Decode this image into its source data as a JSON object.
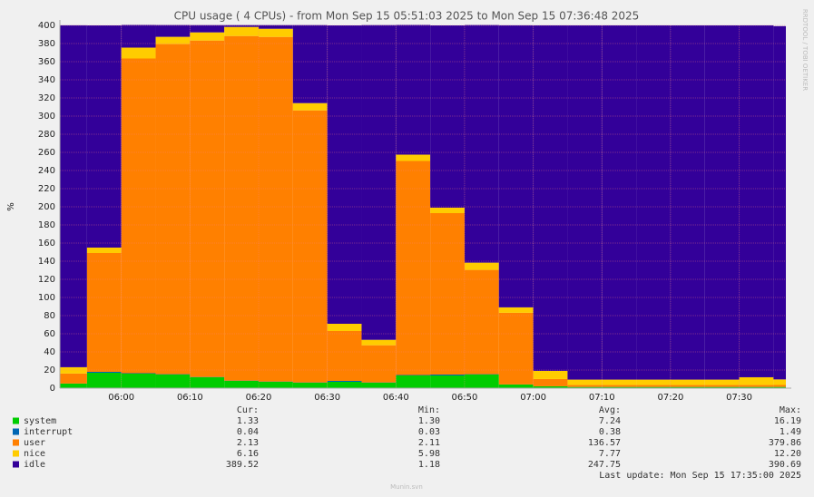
{
  "chart_data": {
    "type": "stacked-step-area",
    "title": "CPU usage ( 4  CPUs) - from Mon Sep 15 05:51:03 2025 to Mon Sep 15 07:36:48 2025",
    "y_label": "%",
    "side_label": "RRDTOOL / TOBI OETIKER",
    "x": [
      "05:55",
      "06:00",
      "06:05",
      "06:10",
      "06:15",
      "06:20",
      "06:25",
      "06:30",
      "06:35",
      "06:40",
      "06:45",
      "06:50",
      "06:55",
      "07:00",
      "07:05",
      "07:10",
      "07:15",
      "07:20",
      "07:25",
      "07:30",
      "07:35",
      "07:40"
    ],
    "xlim": [
      "05:51:03",
      "07:36:48"
    ],
    "xticks": [
      "06:00",
      "06:10",
      "06:20",
      "06:30",
      "06:40",
      "06:50",
      "07:00",
      "07:10",
      "07:20",
      "07:30"
    ],
    "ylim": [
      0,
      400
    ],
    "yticks": [
      0,
      20,
      40,
      60,
      80,
      100,
      120,
      140,
      160,
      180,
      200,
      220,
      240,
      260,
      280,
      300,
      320,
      340,
      360,
      380,
      400
    ],
    "grid": true,
    "series": [
      {
        "name": "system",
        "color": "#00cc00",
        "values": [
          5,
          17,
          16,
          15,
          12,
          8,
          7,
          6,
          7,
          6,
          14,
          14,
          15,
          4,
          2,
          1.3,
          1.3,
          1.3,
          1.3,
          1.3,
          1.3,
          1.33
        ]
      },
      {
        "name": "interrupt",
        "color": "#0066b3",
        "values": [
          0.1,
          1,
          0.5,
          0.4,
          0.3,
          0.3,
          0.3,
          0.3,
          1,
          0.3,
          0.5,
          1,
          0.4,
          0.1,
          0.05,
          0.04,
          0.04,
          0.04,
          0.04,
          0.04,
          0.04,
          0.04
        ]
      },
      {
        "name": "user",
        "color": "#ff8000",
        "values": [
          11,
          131,
          347,
          364,
          371,
          380,
          380,
          300,
          55,
          41,
          236,
          178,
          115,
          79,
          8,
          2.1,
          2.1,
          2.1,
          2.1,
          2.1,
          2.1,
          2.13
        ]
      },
      {
        "name": "nice",
        "color": "#ffcc00",
        "values": [
          7,
          6,
          12,
          8,
          9,
          10,
          9,
          8,
          8,
          6,
          7,
          6,
          8,
          6,
          9,
          6,
          6,
          6,
          6,
          6,
          8.6,
          6.16
        ]
      },
      {
        "name": "idle",
        "color": "#330099",
        "values": [
          377,
          245,
          25,
          13,
          8,
          2,
          4,
          86,
          329,
          347,
          143,
          201,
          262,
          311,
          381,
          390.6,
          390.6,
          390.6,
          390.6,
          390.6,
          388,
          389.52
        ]
      }
    ],
    "stats": {
      "headers": [
        "Cur:",
        "Min:",
        "Avg:",
        "Max:"
      ],
      "rows": [
        [
          "1.33",
          "1.30",
          "7.24",
          "16.19"
        ],
        [
          "0.04",
          "0.03",
          "0.38",
          "1.49"
        ],
        [
          "2.13",
          "2.11",
          "136.57",
          "379.86"
        ],
        [
          "6.16",
          "5.98",
          "7.77",
          "12.20"
        ],
        [
          "389.52",
          "1.18",
          "247.75",
          "390.69"
        ]
      ]
    },
    "last_update": "Last update: Mon Sep 15 17:35:00 2025",
    "footer": "Munin.svn"
  }
}
